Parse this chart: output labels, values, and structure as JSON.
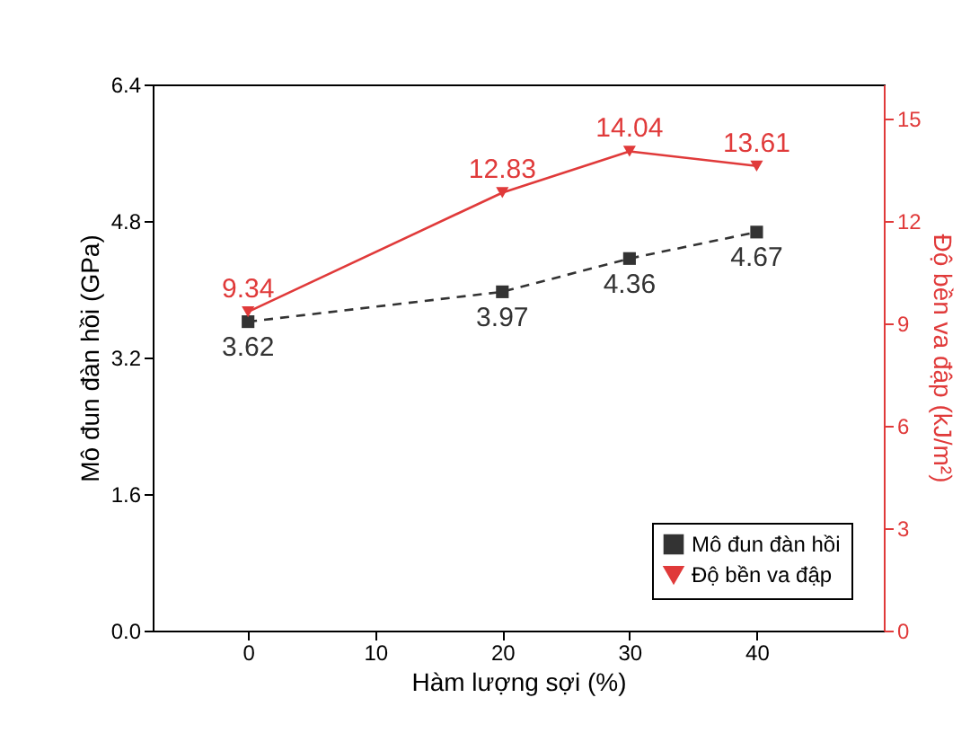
{
  "chart_data": {
    "type": "line",
    "xlabel": "Hàm lượng sợi (%)",
    "ylabel": "Mô đun đàn hồi (GPa)",
    "y2label": "Độ bền va đập (kJ/m²)",
    "x": [
      0,
      20,
      30,
      40
    ],
    "series": [
      {
        "name": "Mô đun đàn hồi",
        "color": "#333333",
        "values": [
          3.62,
          3.97,
          4.36,
          4.67
        ],
        "marker": "square",
        "line_style": "dashed"
      },
      {
        "name": "Độ bền va đập",
        "color": "#e03a3a",
        "values": [
          9.34,
          12.83,
          14.04,
          13.61
        ],
        "marker": "triangle-down",
        "line_style": "solid",
        "axis": "y2"
      }
    ],
    "xlim": [
      -7.5,
      50
    ],
    "xticks": [
      0,
      10,
      20,
      30,
      40
    ],
    "ylim": [
      0,
      6.4
    ],
    "yticks": [
      {
        "value": 0,
        "label": "0.0"
      },
      1.6,
      3.2,
      4.8,
      6.4
    ],
    "y2lim": [
      0,
      16
    ],
    "y2ticks": [
      0,
      3,
      6,
      9,
      12,
      15
    ],
    "data_labels": true,
    "legend": "bottom right",
    "grid": false
  }
}
